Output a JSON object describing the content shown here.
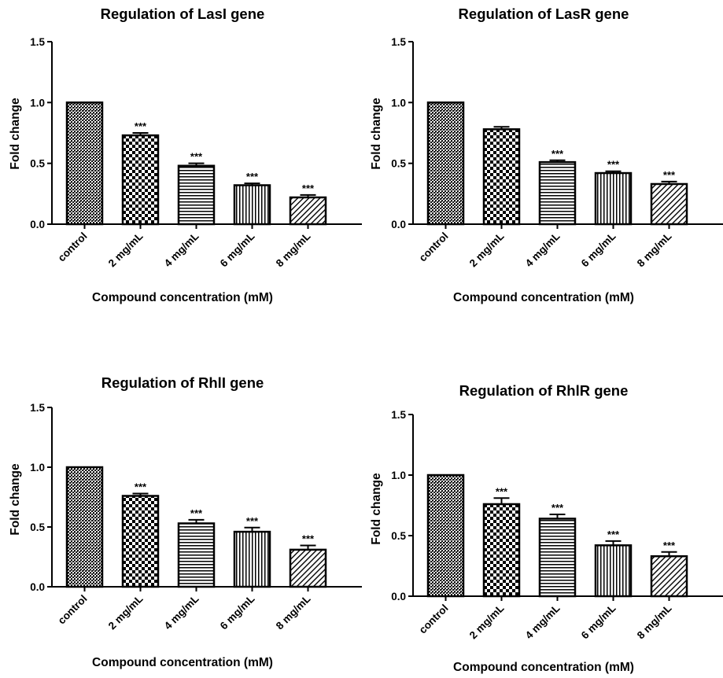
{
  "chart_data": [
    {
      "type": "bar",
      "title": "Regulation of LasI gene",
      "xlabel": "Compound concentration (mM)",
      "ylabel": "Fold change",
      "ylim": [
        0,
        1.5
      ],
      "yticks": [
        "0.0",
        "0.5",
        "1.0",
        "1.5"
      ],
      "categories": [
        "control",
        "2 mg/mL",
        "4 mg/mL",
        "6 mg/mL",
        "8 mg/mL"
      ],
      "values": [
        1.0,
        0.73,
        0.48,
        0.32,
        0.22
      ],
      "errors": [
        0,
        0.02,
        0.02,
        0.015,
        0.02
      ],
      "significance": [
        "",
        "***",
        "***",
        "***",
        "***"
      ],
      "patterns": [
        "pat-control",
        "pat-check",
        "pat-hlines",
        "pat-vlines",
        "pat-diag"
      ]
    },
    {
      "type": "bar",
      "title": "Regulation of LasR gene",
      "xlabel": "Compound concentration (mM)",
      "ylabel": "Fold change",
      "ylim": [
        0,
        1.5
      ],
      "yticks": [
        "0.0",
        "0.5",
        "1.0",
        "1.5"
      ],
      "categories": [
        "control",
        "2 mg/mL",
        "4 mg/mL",
        "6 mg/mL",
        "8 mg/mL"
      ],
      "values": [
        1.0,
        0.78,
        0.51,
        0.42,
        0.33
      ],
      "errors": [
        0,
        0.02,
        0.015,
        0.015,
        0.02
      ],
      "significance": [
        "",
        "",
        "***",
        "***",
        "***"
      ],
      "patterns": [
        "pat-control",
        "pat-check",
        "pat-hlines",
        "pat-vlines",
        "pat-diag"
      ]
    },
    {
      "type": "bar",
      "title": "Regulation of RhlI gene",
      "xlabel": "Compound concentration (mM)",
      "ylabel": "Fold change",
      "ylim": [
        0,
        1.5
      ],
      "yticks": [
        "0.0",
        "0.5",
        "1.0",
        "1.5"
      ],
      "categories": [
        "control",
        "2 mg/mL",
        "4 mg/mL",
        "6 mg/mL",
        "8 mg/mL"
      ],
      "values": [
        1.0,
        0.76,
        0.53,
        0.46,
        0.31
      ],
      "errors": [
        0,
        0.02,
        0.03,
        0.035,
        0.035
      ],
      "significance": [
        "",
        "***",
        "***",
        "***",
        "***"
      ],
      "patterns": [
        "pat-control",
        "pat-check",
        "pat-hlines",
        "pat-vlines",
        "pat-diag"
      ]
    },
    {
      "type": "bar",
      "title": "Regulation of RhlR gene",
      "xlabel": "Compound concentration (mM)",
      "ylabel": "Fold change",
      "ylim": [
        0,
        1.5
      ],
      "yticks": [
        "0.0",
        "0.5",
        "1.0",
        "1.5"
      ],
      "categories": [
        "control",
        "2 mg/mL",
        "4 mg/mL",
        "6 mg/mL",
        "8 mg/mL"
      ],
      "values": [
        1.0,
        0.76,
        0.64,
        0.42,
        0.33
      ],
      "errors": [
        0,
        0.05,
        0.035,
        0.035,
        0.035
      ],
      "significance": [
        "",
        "***",
        "***",
        "***",
        "***"
      ],
      "patterns": [
        "pat-control",
        "pat-check",
        "pat-hlines",
        "pat-vlines",
        "pat-diag"
      ]
    }
  ]
}
